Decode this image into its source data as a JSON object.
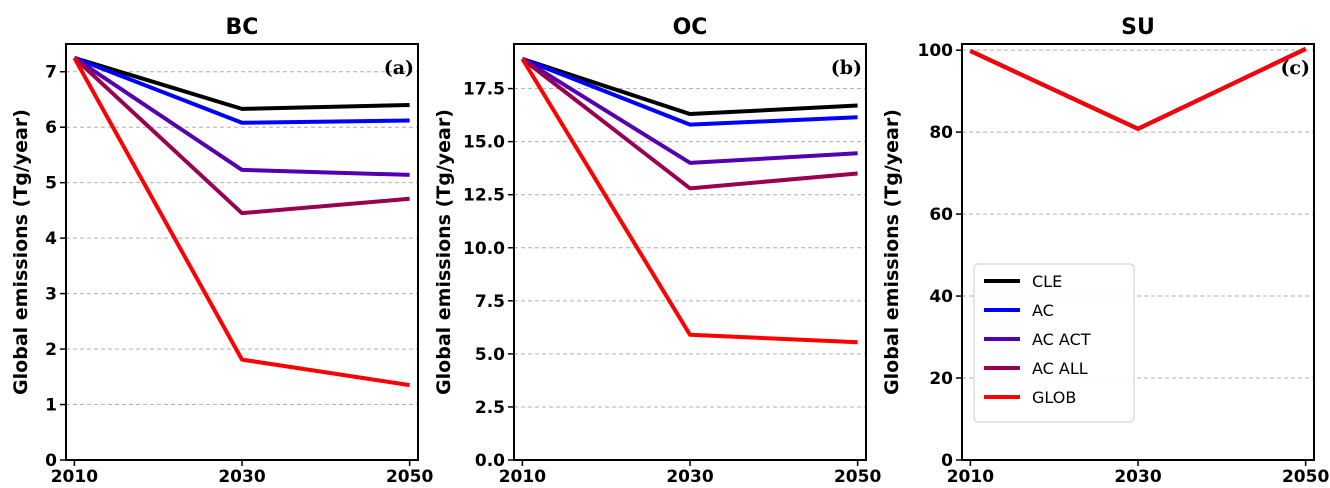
{
  "chart_data": [
    {
      "type": "line",
      "title": "BC",
      "panel_label": "(a)",
      "ylabel": "Global emissions (Tg/year)",
      "x": [
        2010,
        2030,
        2050
      ],
      "xticks": [
        "2010",
        "2030",
        "2050"
      ],
      "xlim": [
        2009,
        2051
      ],
      "ylim": [
        0,
        7.5
      ],
      "yticks": [
        0,
        1,
        2,
        3,
        4,
        5,
        6,
        7
      ],
      "ytick_labels": [
        "0",
        "1",
        "2",
        "3",
        "4",
        "5",
        "6",
        "7"
      ],
      "grid": "y-dashed",
      "series": [
        {
          "name": "CLE",
          "values": [
            7.25,
            6.33,
            6.4
          ]
        },
        {
          "name": "AC",
          "values": [
            7.25,
            6.08,
            6.12
          ]
        },
        {
          "name": "AC_ACT",
          "values": [
            7.25,
            5.23,
            5.14
          ]
        },
        {
          "name": "AC_ALL",
          "values": [
            7.25,
            4.45,
            4.71
          ]
        },
        {
          "name": "GLOB",
          "values": [
            7.25,
            1.81,
            1.35
          ]
        }
      ]
    },
    {
      "type": "line",
      "title": "OC",
      "panel_label": "(b)",
      "ylabel": "Global emissions (Tg/year)",
      "x": [
        2010,
        2030,
        2050
      ],
      "xticks": [
        "2010",
        "2030",
        "2050"
      ],
      "xlim": [
        2009,
        2051
      ],
      "ylim": [
        0,
        19.6
      ],
      "yticks": [
        0,
        2.5,
        5,
        7.5,
        10,
        12.5,
        15,
        17.5
      ],
      "ytick_labels": [
        "0.0",
        "2.5",
        "5.0",
        "7.5",
        "10.0",
        "12.5",
        "15.0",
        "17.5"
      ],
      "grid": "y-dashed",
      "series": [
        {
          "name": "CLE",
          "values": [
            18.9,
            16.3,
            16.7
          ]
        },
        {
          "name": "AC",
          "values": [
            18.9,
            15.8,
            16.15
          ]
        },
        {
          "name": "AC_ACT",
          "values": [
            18.9,
            14.0,
            14.45
          ]
        },
        {
          "name": "AC_ALL",
          "values": [
            18.9,
            12.8,
            13.5
          ]
        },
        {
          "name": "GLOB",
          "values": [
            18.9,
            5.9,
            5.55
          ]
        }
      ]
    },
    {
      "type": "line",
      "title": "SU",
      "panel_label": "(c)",
      "ylabel": "Global emissions (Tg/year)",
      "x": [
        2010,
        2030,
        2050
      ],
      "xticks": [
        "2010",
        "2030",
        "2050"
      ],
      "xlim": [
        2009,
        2051
      ],
      "ylim": [
        0,
        101.5
      ],
      "yticks": [
        0,
        20,
        40,
        60,
        80,
        100
      ],
      "ytick_labels": [
        "0",
        "20",
        "40",
        "60",
        "80",
        "100"
      ],
      "grid": "y-dashed",
      "legend": "lower-left",
      "series": [
        {
          "name": "CLE",
          "values": [
            99.8,
            80.8,
            100.3
          ]
        },
        {
          "name": "AC",
          "values": [
            99.8,
            80.8,
            100.3
          ]
        },
        {
          "name": "AC_ACT",
          "values": [
            99.8,
            80.8,
            100.3
          ]
        },
        {
          "name": "AC_ALL",
          "values": [
            99.8,
            80.8,
            100.3
          ]
        },
        {
          "name": "GLOB",
          "values": [
            99.8,
            80.8,
            100.3
          ]
        }
      ]
    }
  ],
  "legend": {
    "entries": [
      "CLE",
      "AC",
      "AC_ACT",
      "AC_ALL",
      "GLOB"
    ],
    "labels": [
      "CLE",
      "AC",
      "AC ACT",
      "AC ALL",
      "GLOB"
    ]
  },
  "colors": {
    "CLE": "#000000",
    "AC": "#0000ff",
    "AC_ACT": "#5500b0",
    "AC_ALL": "#990050",
    "GLOB": "#ff0000",
    "grid": "#b0b0b0"
  }
}
